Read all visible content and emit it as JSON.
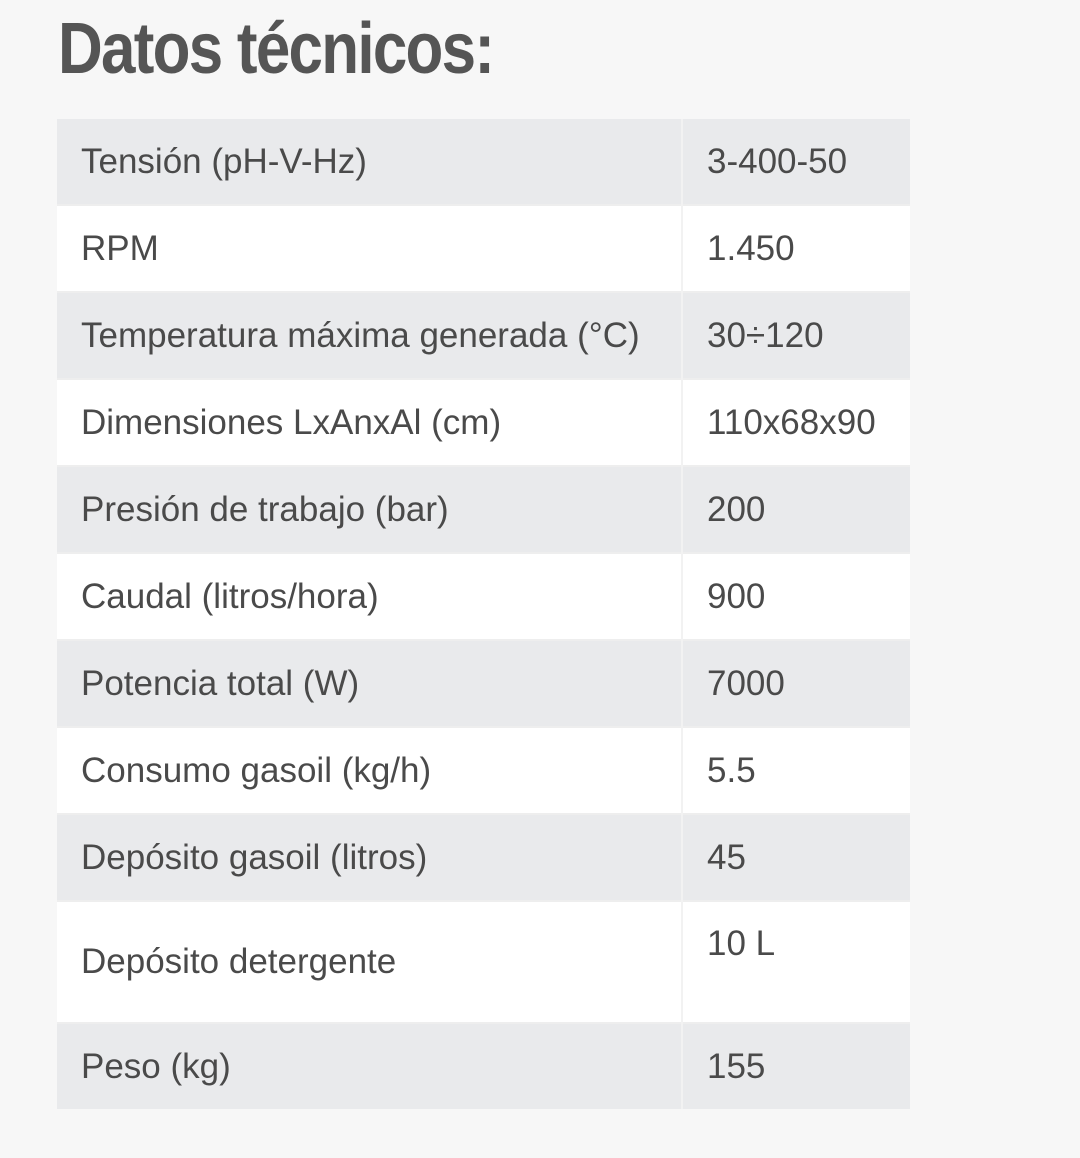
{
  "title": "Datos técnicos:",
  "rows": [
    {
      "label": "Tensión (pH-V-Hz)",
      "value": "3-400-50"
    },
    {
      "label": "RPM",
      "value": "1.450"
    },
    {
      "label": "Temperatura máxima generada (°C)",
      "value": "30÷120"
    },
    {
      "label": "Dimensiones LxAnxAl (cm)",
      "value": "110x68x90"
    },
    {
      "label": "Presión de trabajo (bar)",
      "value": "200"
    },
    {
      "label": "Caudal (litros/hora)",
      "value": "900"
    },
    {
      "label": "Potencia total (W)",
      "value": "7000"
    },
    {
      "label": "Consumo gasoil (kg/h)",
      "value": "5.5"
    },
    {
      "label": "Depósito gasoil (litros)",
      "value": "45"
    },
    {
      "label": "Depósito detergente",
      "value": "10 L"
    },
    {
      "label": "Peso (kg)",
      "value": "155"
    }
  ]
}
